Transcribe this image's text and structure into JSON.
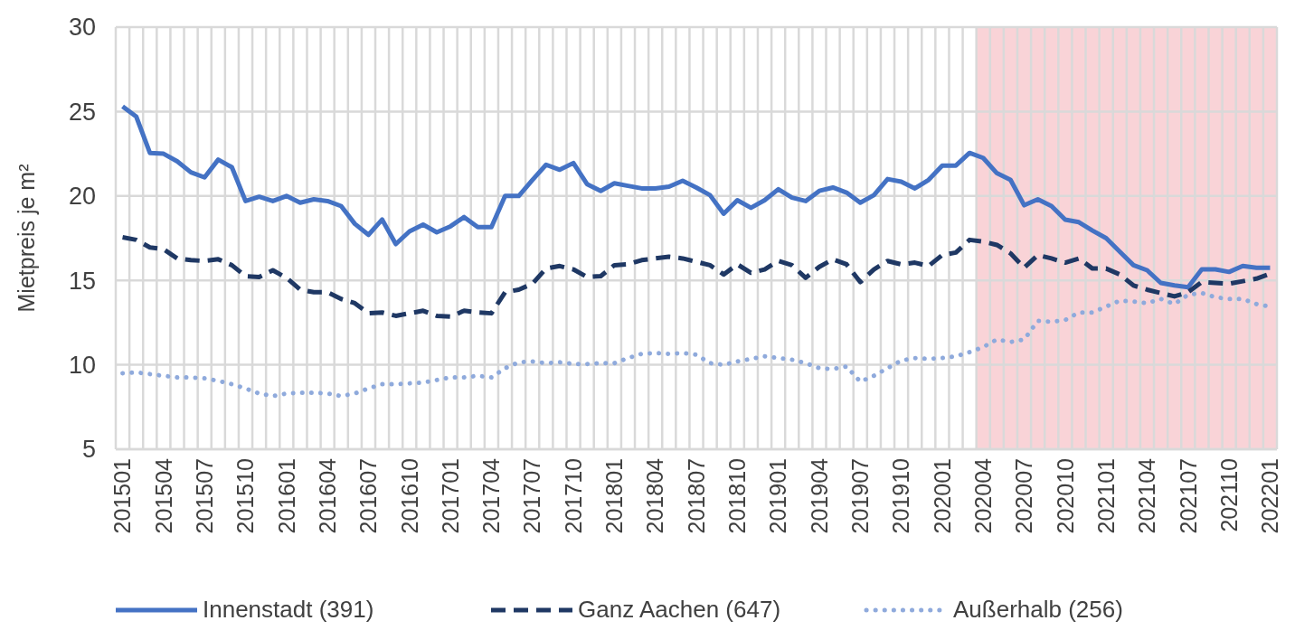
{
  "chart_data": {
    "type": "line",
    "ylabel": "Mietpreis je m²",
    "categories": [
      "201501",
      null,
      null,
      "201504",
      null,
      null,
      "201507",
      null,
      null,
      "201510",
      null,
      null,
      "201601",
      null,
      null,
      "201604",
      null,
      null,
      "201607",
      null,
      null,
      "201610",
      null,
      null,
      "201701",
      null,
      null,
      "201704",
      null,
      null,
      "201707",
      null,
      null,
      "201710",
      null,
      null,
      "201801",
      null,
      null,
      "201804",
      null,
      null,
      "201807",
      null,
      null,
      "201810",
      null,
      null,
      "201901",
      null,
      null,
      "201904",
      null,
      null,
      "201907",
      null,
      null,
      "201910",
      null,
      null,
      "202001",
      null,
      null,
      "202004",
      null,
      null,
      "202007",
      null,
      null,
      "202010",
      null,
      null,
      "202101",
      null,
      null,
      "202104",
      null,
      null,
      "202107",
      null,
      null,
      "202110",
      null,
      null,
      "202201"
    ],
    "series": [
      {
        "name": "Innenstadt (391)",
        "color": "#4472c4",
        "line_style": "solid",
        "values": [
          25.3,
          24.7,
          22.55,
          22.5,
          22.05,
          21.4,
          21.1,
          22.15,
          21.7,
          19.7,
          19.95,
          19.7,
          20.0,
          19.6,
          19.8,
          19.7,
          19.4,
          18.35,
          17.7,
          18.6,
          17.15,
          17.9,
          18.3,
          17.85,
          18.2,
          18.75,
          18.15,
          18.15,
          20.0,
          20.0,
          20.95,
          21.85,
          21.55,
          21.95,
          20.7,
          20.3,
          20.75,
          20.6,
          20.45,
          20.45,
          20.55,
          20.9,
          20.5,
          20.05,
          18.95,
          19.75,
          19.3,
          19.75,
          20.4,
          19.9,
          19.7,
          20.3,
          20.5,
          20.2,
          19.6,
          20.05,
          21.0,
          20.85,
          20.45,
          20.95,
          21.8,
          21.8,
          22.55,
          22.25,
          21.35,
          20.95,
          19.45,
          19.8,
          19.4,
          18.6,
          18.45,
          17.95,
          17.5,
          16.7,
          15.9,
          15.6,
          14.85,
          14.7,
          14.6,
          15.65,
          15.65,
          15.5,
          15.85,
          15.75,
          15.75
        ]
      },
      {
        "name": "Ganz Aachen (647)",
        "color": "#1f3864",
        "line_style": "dashed",
        "values": [
          17.55,
          17.4,
          16.95,
          16.85,
          16.3,
          16.2,
          16.15,
          16.25,
          15.9,
          15.25,
          15.2,
          15.6,
          15.15,
          14.45,
          14.3,
          14.3,
          13.9,
          13.65,
          13.05,
          13.1,
          12.9,
          13.05,
          13.2,
          12.9,
          12.85,
          13.2,
          13.1,
          13.05,
          14.3,
          14.45,
          14.8,
          15.7,
          15.85,
          15.65,
          15.2,
          15.25,
          15.9,
          15.95,
          16.2,
          16.3,
          16.4,
          16.3,
          16.1,
          15.9,
          15.35,
          15.95,
          15.45,
          15.65,
          16.15,
          15.9,
          15.15,
          15.8,
          16.25,
          15.95,
          14.9,
          15.65,
          16.15,
          15.95,
          16.05,
          15.85,
          16.5,
          16.65,
          17.4,
          17.3,
          17.1,
          16.6,
          15.75,
          16.5,
          16.3,
          16.05,
          16.3,
          15.7,
          15.7,
          15.35,
          14.7,
          14.45,
          14.25,
          14.05,
          14.3,
          14.9,
          14.85,
          14.8,
          14.95,
          15.1,
          15.4
        ]
      },
      {
        "name": "Außerhalb (256)",
        "color": "#8faadc",
        "line_style": "dotted",
        "values": [
          9.5,
          9.55,
          9.45,
          9.35,
          9.25,
          9.25,
          9.2,
          9.05,
          8.85,
          8.6,
          8.3,
          8.15,
          8.3,
          8.35,
          8.35,
          8.3,
          8.15,
          8.3,
          8.6,
          8.85,
          8.85,
          8.9,
          8.95,
          9.1,
          9.25,
          9.25,
          9.35,
          9.25,
          9.8,
          10.15,
          10.2,
          10.1,
          10.15,
          10.05,
          10.05,
          10.1,
          10.1,
          10.4,
          10.65,
          10.7,
          10.65,
          10.7,
          10.6,
          10.1,
          10.0,
          10.2,
          10.35,
          10.5,
          10.4,
          10.3,
          10.1,
          9.8,
          9.75,
          9.9,
          9.0,
          9.35,
          9.8,
          10.25,
          10.4,
          10.35,
          10.4,
          10.5,
          10.75,
          11.05,
          11.5,
          11.35,
          11.5,
          12.6,
          12.55,
          12.65,
          13.1,
          13.1,
          13.45,
          13.8,
          13.75,
          13.65,
          13.9,
          13.6,
          14.15,
          14.25,
          14.0,
          13.9,
          13.9,
          13.6,
          13.45
        ]
      }
    ],
    "ylim": [
      5,
      30
    ],
    "yticks": [
      5,
      10,
      15,
      20,
      25,
      30
    ],
    "bands": [
      {
        "axis": "x",
        "from": "202004",
        "to": "202201",
        "color": "#f9d3d7"
      }
    ],
    "grid": true,
    "legend": "bottom"
  }
}
